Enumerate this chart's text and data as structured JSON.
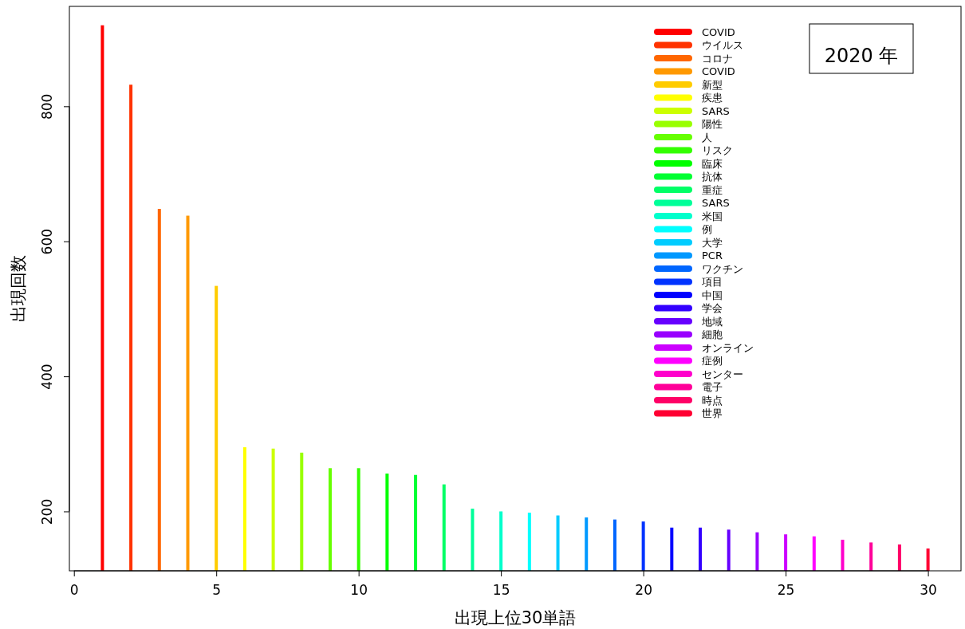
{
  "chart_data": {
    "type": "bar",
    "xlabel": "出現上位30単語",
    "ylabel": "出現回数",
    "annotations": [
      "2020 年"
    ],
    "xlim": [
      -0.16,
      31.16
    ],
    "ylim": [
      112,
      948
    ],
    "xticks": [
      0,
      5,
      10,
      15,
      20,
      25,
      30
    ],
    "yticks": [
      200,
      400,
      600,
      800
    ],
    "legend": "top right",
    "grid": false,
    "x": [
      1,
      2,
      3,
      4,
      5,
      6,
      7,
      8,
      9,
      10,
      11,
      12,
      13,
      14,
      15,
      16,
      17,
      18,
      19,
      20,
      21,
      22,
      23,
      24,
      25,
      26,
      27,
      28,
      29,
      30
    ],
    "series": [
      {
        "name": "COVID",
        "color": "#ff0000",
        "values": [
          920,
          null,
          null,
          null,
          null,
          null,
          null,
          null,
          null,
          null,
          null,
          null,
          null,
          null,
          null,
          null,
          null,
          null,
          null,
          null,
          null,
          null,
          null,
          null,
          null,
          null,
          null,
          null,
          null,
          null
        ]
      },
      {
        "name": "ウイルス",
        "color": "#ff3300",
        "values": [
          null,
          832,
          null,
          null,
          null,
          null,
          null,
          null,
          null,
          null,
          null,
          null,
          null,
          null,
          null,
          null,
          null,
          null,
          null,
          null,
          null,
          null,
          null,
          null,
          null,
          null,
          null,
          null,
          null,
          null
        ]
      },
      {
        "name": "コロナ",
        "color": "#ff6600",
        "values": [
          null,
          null,
          648,
          null,
          null,
          null,
          null,
          null,
          null,
          null,
          null,
          null,
          null,
          null,
          null,
          null,
          null,
          null,
          null,
          null,
          null,
          null,
          null,
          null,
          null,
          null,
          null,
          null,
          null,
          null
        ]
      },
      {
        "name": "COVID",
        "color": "#ff9900",
        "values": [
          null,
          null,
          null,
          638,
          null,
          null,
          null,
          null,
          null,
          null,
          null,
          null,
          null,
          null,
          null,
          null,
          null,
          null,
          null,
          null,
          null,
          null,
          null,
          null,
          null,
          null,
          null,
          null,
          null,
          null
        ]
      },
      {
        "name": "新型",
        "color": "#ffcc00",
        "values": [
          null,
          null,
          null,
          null,
          534,
          null,
          null,
          null,
          null,
          null,
          null,
          null,
          null,
          null,
          null,
          null,
          null,
          null,
          null,
          null,
          null,
          null,
          null,
          null,
          null,
          null,
          null,
          null,
          null,
          null
        ]
      },
      {
        "name": "疾患",
        "color": "#ffff00",
        "values": [
          null,
          null,
          null,
          null,
          null,
          295,
          null,
          null,
          null,
          null,
          null,
          null,
          null,
          null,
          null,
          null,
          null,
          null,
          null,
          null,
          null,
          null,
          null,
          null,
          null,
          null,
          null,
          null,
          null,
          null
        ]
      },
      {
        "name": "SARS",
        "color": "#ccff00",
        "values": [
          null,
          null,
          null,
          null,
          null,
          null,
          293,
          null,
          null,
          null,
          null,
          null,
          null,
          null,
          null,
          null,
          null,
          null,
          null,
          null,
          null,
          null,
          null,
          null,
          null,
          null,
          null,
          null,
          null,
          null
        ]
      },
      {
        "name": "陽性",
        "color": "#99ff00",
        "values": [
          null,
          null,
          null,
          null,
          null,
          null,
          null,
          287,
          null,
          null,
          null,
          null,
          null,
          null,
          null,
          null,
          null,
          null,
          null,
          null,
          null,
          null,
          null,
          null,
          null,
          null,
          null,
          null,
          null,
          null
        ]
      },
      {
        "name": "人",
        "color": "#66ff00",
        "values": [
          null,
          null,
          null,
          null,
          null,
          null,
          null,
          null,
          264,
          null,
          null,
          null,
          null,
          null,
          null,
          null,
          null,
          null,
          null,
          null,
          null,
          null,
          null,
          null,
          null,
          null,
          null,
          null,
          null,
          null
        ]
      },
      {
        "name": "リスク",
        "color": "#33ff00",
        "values": [
          null,
          null,
          null,
          null,
          null,
          null,
          null,
          null,
          null,
          264,
          null,
          null,
          null,
          null,
          null,
          null,
          null,
          null,
          null,
          null,
          null,
          null,
          null,
          null,
          null,
          null,
          null,
          null,
          null,
          null
        ]
      },
      {
        "name": "臨床",
        "color": "#00ff00",
        "values": [
          null,
          null,
          null,
          null,
          null,
          null,
          null,
          null,
          null,
          null,
          256,
          null,
          null,
          null,
          null,
          null,
          null,
          null,
          null,
          null,
          null,
          null,
          null,
          null,
          null,
          null,
          null,
          null,
          null,
          null
        ]
      },
      {
        "name": "抗体",
        "color": "#00ff33",
        "values": [
          null,
          null,
          null,
          null,
          null,
          null,
          null,
          null,
          null,
          null,
          null,
          254,
          null,
          null,
          null,
          null,
          null,
          null,
          null,
          null,
          null,
          null,
          null,
          null,
          null,
          null,
          null,
          null,
          null,
          null
        ]
      },
      {
        "name": "重症",
        "color": "#00ff66",
        "values": [
          null,
          null,
          null,
          null,
          null,
          null,
          null,
          null,
          null,
          null,
          null,
          null,
          240,
          null,
          null,
          null,
          null,
          null,
          null,
          null,
          null,
          null,
          null,
          null,
          null,
          null,
          null,
          null,
          null,
          null
        ]
      },
      {
        "name": "SARS",
        "color": "#00ff99",
        "values": [
          null,
          null,
          null,
          null,
          null,
          null,
          null,
          null,
          null,
          null,
          null,
          null,
          null,
          204,
          null,
          null,
          null,
          null,
          null,
          null,
          null,
          null,
          null,
          null,
          null,
          null,
          null,
          null,
          null,
          null
        ]
      },
      {
        "name": "米国",
        "color": "#00ffcc",
        "values": [
          null,
          null,
          null,
          null,
          null,
          null,
          null,
          null,
          null,
          null,
          null,
          null,
          null,
          null,
          200,
          null,
          null,
          null,
          null,
          null,
          null,
          null,
          null,
          null,
          null,
          null,
          null,
          null,
          null,
          null
        ]
      },
      {
        "name": "例",
        "color": "#00ffff",
        "values": [
          null,
          null,
          null,
          null,
          null,
          null,
          null,
          null,
          null,
          null,
          null,
          null,
          null,
          null,
          null,
          198,
          null,
          null,
          null,
          null,
          null,
          null,
          null,
          null,
          null,
          null,
          null,
          null,
          null,
          null
        ]
      },
      {
        "name": "大学",
        "color": "#00ccff",
        "values": [
          null,
          null,
          null,
          null,
          null,
          null,
          null,
          null,
          null,
          null,
          null,
          null,
          null,
          null,
          null,
          null,
          194,
          null,
          null,
          null,
          null,
          null,
          null,
          null,
          null,
          null,
          null,
          null,
          null,
          null
        ]
      },
      {
        "name": "PCR",
        "color": "#0099ff",
        "values": [
          null,
          null,
          null,
          null,
          null,
          null,
          null,
          null,
          null,
          null,
          null,
          null,
          null,
          null,
          null,
          null,
          null,
          191,
          null,
          null,
          null,
          null,
          null,
          null,
          null,
          null,
          null,
          null,
          null,
          null
        ]
      },
      {
        "name": "ワクチン",
        "color": "#0066ff",
        "values": [
          null,
          null,
          null,
          null,
          null,
          null,
          null,
          null,
          null,
          null,
          null,
          null,
          null,
          null,
          null,
          null,
          null,
          null,
          188,
          null,
          null,
          null,
          null,
          null,
          null,
          null,
          null,
          null,
          null,
          null
        ]
      },
      {
        "name": "項目",
        "color": "#0033ff",
        "values": [
          null,
          null,
          null,
          null,
          null,
          null,
          null,
          null,
          null,
          null,
          null,
          null,
          null,
          null,
          null,
          null,
          null,
          null,
          null,
          185,
          null,
          null,
          null,
          null,
          null,
          null,
          null,
          null,
          null,
          null
        ]
      },
      {
        "name": "中国",
        "color": "#0000ff",
        "values": [
          null,
          null,
          null,
          null,
          null,
          null,
          null,
          null,
          null,
          null,
          null,
          null,
          null,
          null,
          null,
          null,
          null,
          null,
          null,
          null,
          176,
          null,
          null,
          null,
          null,
          null,
          null,
          null,
          null,
          null
        ]
      },
      {
        "name": "学会",
        "color": "#3300ff",
        "values": [
          null,
          null,
          null,
          null,
          null,
          null,
          null,
          null,
          null,
          null,
          null,
          null,
          null,
          null,
          null,
          null,
          null,
          null,
          null,
          null,
          null,
          176,
          null,
          null,
          null,
          null,
          null,
          null,
          null,
          null
        ]
      },
      {
        "name": "地域",
        "color": "#6600ff",
        "values": [
          null,
          null,
          null,
          null,
          null,
          null,
          null,
          null,
          null,
          null,
          null,
          null,
          null,
          null,
          null,
          null,
          null,
          null,
          null,
          null,
          null,
          null,
          173,
          null,
          null,
          null,
          null,
          null,
          null,
          null
        ]
      },
      {
        "name": "細胞",
        "color": "#9900ff",
        "values": [
          null,
          null,
          null,
          null,
          null,
          null,
          null,
          null,
          null,
          null,
          null,
          null,
          null,
          null,
          null,
          null,
          null,
          null,
          null,
          null,
          null,
          null,
          null,
          169,
          null,
          null,
          null,
          null,
          null,
          null
        ]
      },
      {
        "name": "オンライン",
        "color": "#cc00ff",
        "values": [
          null,
          null,
          null,
          null,
          null,
          null,
          null,
          null,
          null,
          null,
          null,
          null,
          null,
          null,
          null,
          null,
          null,
          null,
          null,
          null,
          null,
          null,
          null,
          null,
          166,
          null,
          null,
          null,
          null,
          null
        ]
      },
      {
        "name": "症例",
        "color": "#ff00ff",
        "values": [
          null,
          null,
          null,
          null,
          null,
          null,
          null,
          null,
          null,
          null,
          null,
          null,
          null,
          null,
          null,
          null,
          null,
          null,
          null,
          null,
          null,
          null,
          null,
          null,
          null,
          163,
          null,
          null,
          null,
          null
        ]
      },
      {
        "name": "センター",
        "color": "#ff00cc",
        "values": [
          null,
          null,
          null,
          null,
          null,
          null,
          null,
          null,
          null,
          null,
          null,
          null,
          null,
          null,
          null,
          null,
          null,
          null,
          null,
          null,
          null,
          null,
          null,
          null,
          null,
          null,
          158,
          null,
          null,
          null
        ]
      },
      {
        "name": "電子",
        "color": "#ff0099",
        "values": [
          null,
          null,
          null,
          null,
          null,
          null,
          null,
          null,
          null,
          null,
          null,
          null,
          null,
          null,
          null,
          null,
          null,
          null,
          null,
          null,
          null,
          null,
          null,
          null,
          null,
          null,
          null,
          154,
          null,
          null
        ]
      },
      {
        "name": "時点",
        "color": "#ff0066",
        "values": [
          null,
          null,
          null,
          null,
          null,
          null,
          null,
          null,
          null,
          null,
          null,
          null,
          null,
          null,
          null,
          null,
          null,
          null,
          null,
          null,
          null,
          null,
          null,
          null,
          null,
          null,
          null,
          null,
          151,
          null
        ]
      },
      {
        "name": "世界",
        "color": "#ff0033",
        "values": [
          null,
          null,
          null,
          null,
          null,
          null,
          null,
          null,
          null,
          null,
          null,
          null,
          null,
          null,
          null,
          null,
          null,
          null,
          null,
          null,
          null,
          null,
          null,
          null,
          null,
          null,
          null,
          null,
          null,
          145
        ]
      }
    ]
  }
}
